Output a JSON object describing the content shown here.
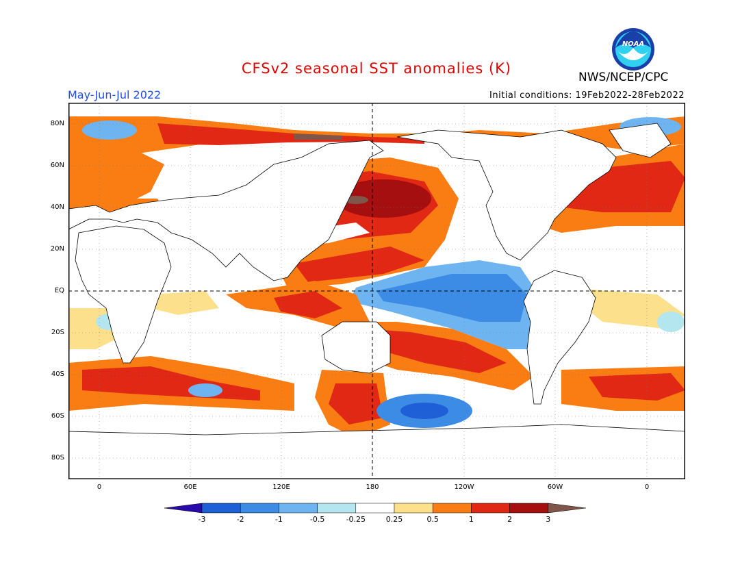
{
  "header": {
    "title": "CFSv2 seasonal SST anomalies (K)",
    "agency": "NWS/NCEP/CPC",
    "logo_text": "NOAA",
    "period": "May-Jun-Jul 2022",
    "initial_conditions": "Initial conditions: 19Feb2022-28Feb2022"
  },
  "map": {
    "lat_ticks": [
      "80N",
      "60N",
      "40N",
      "20N",
      "EQ",
      "20S",
      "40S",
      "60S",
      "80S"
    ],
    "lon_ticks": [
      "0",
      "60E",
      "120E",
      "180",
      "120W",
      "60W",
      "0"
    ],
    "reference_lines": [
      "equator",
      "dateline"
    ]
  },
  "colorbar": {
    "labels": [
      "-3",
      "-2",
      "-1",
      "-0.5",
      "-0.25",
      "0.25",
      "0.5",
      "1",
      "2",
      "3"
    ],
    "colors": [
      "#2a0aa8",
      "#1e5fd8",
      "#3c8ce6",
      "#6eb4f0",
      "#b4e6f0",
      "#ffffff",
      "#fce08c",
      "#fa7d14",
      "#e02814",
      "#a50f0f",
      "#80554a"
    ]
  },
  "colors": {
    "land": "#ffffff",
    "coast": "#000000",
    "title": "#e00000",
    "period": "#1f4fe0"
  }
}
